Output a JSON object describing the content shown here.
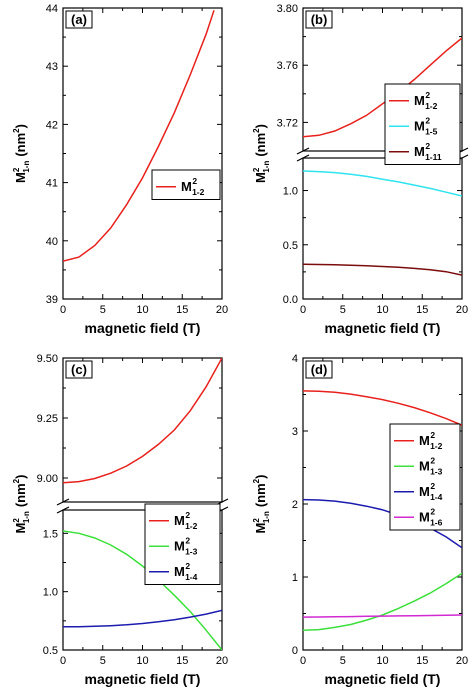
{
  "chart_data": [
    {
      "type": "line",
      "panel_label": "(a)",
      "xlabel": "magnetic field (T)",
      "ylabel": {
        "main": "M",
        "sup": "2",
        "sub": "1-n",
        "unit": "(nm",
        "unit_sup": "2",
        "unit_close": ")"
      },
      "xlim": [
        0,
        20
      ],
      "xticks": [
        "0",
        "5",
        "10",
        "15",
        "20"
      ],
      "ylim": [
        39,
        44
      ],
      "yticks": [
        "39",
        "40",
        "41",
        "42",
        "43",
        "44"
      ],
      "series": [
        {
          "name": "M",
          "sup": "2",
          "sub": "1-2",
          "color": "#e8211c",
          "x": [
            0,
            2,
            4,
            6,
            8,
            10,
            12,
            14,
            16,
            18,
            19
          ],
          "y": [
            39.65,
            39.72,
            39.92,
            40.22,
            40.62,
            41.08,
            41.62,
            42.2,
            42.85,
            43.55,
            43.96
          ]
        }
      ]
    },
    {
      "type": "line",
      "panel_label": "(b)",
      "xlabel": "magnetic field (T)",
      "ylabel": {
        "main": "M",
        "sup": "2",
        "sub": "1-n",
        "unit": "(nm",
        "unit_sup": "2",
        "unit_close": ")"
      },
      "xlim": [
        0,
        20
      ],
      "xticks": [
        "0",
        "5",
        "10",
        "15",
        "20"
      ],
      "broken_axis": true,
      "upper": {
        "ylim": [
          3.7,
          3.8
        ],
        "yticks": [
          "3.72",
          "3.76",
          "3.80"
        ]
      },
      "lower": {
        "ylim": [
          0.0,
          1.3
        ],
        "yticks": [
          "0.0",
          "0.5",
          "1.0"
        ]
      },
      "series": [
        {
          "name": "M",
          "sup": "2",
          "sub": "1-2",
          "color": "#e8211c",
          "segment": "upper",
          "x": [
            0,
            2,
            4,
            6,
            8,
            10,
            12,
            14,
            16,
            18,
            20
          ],
          "y": [
            3.71,
            3.711,
            3.714,
            3.719,
            3.725,
            3.733,
            3.741,
            3.75,
            3.76,
            3.77,
            3.779
          ]
        },
        {
          "name": "M",
          "sup": "2",
          "sub": "1-5",
          "color": "#2fe4ee",
          "segment": "lower",
          "x": [
            0,
            2,
            4,
            6,
            8,
            10,
            12,
            14,
            16,
            18,
            20
          ],
          "y": [
            1.18,
            1.175,
            1.165,
            1.15,
            1.13,
            1.105,
            1.08,
            1.05,
            1.02,
            0.985,
            0.95
          ]
        },
        {
          "name": "M",
          "sup": "2",
          "sub": "1-11",
          "color": "#7a0c0c",
          "segment": "lower",
          "x": [
            0,
            2,
            4,
            6,
            8,
            10,
            12,
            14,
            16,
            18,
            20
          ],
          "y": [
            0.32,
            0.318,
            0.315,
            0.311,
            0.306,
            0.3,
            0.292,
            0.282,
            0.27,
            0.252,
            0.22
          ]
        }
      ]
    },
    {
      "type": "line",
      "panel_label": "(c)",
      "xlabel": "magnetic field (T)",
      "ylabel": {
        "main": "M",
        "sup": "2",
        "sub": "1-n",
        "unit": "(nm",
        "unit_sup": "2",
        "unit_close": ")"
      },
      "xlim": [
        0,
        20
      ],
      "xticks": [
        "0",
        "5",
        "10",
        "15",
        "20"
      ],
      "broken_axis": true,
      "upper": {
        "ylim": [
          8.9,
          9.5
        ],
        "yticks": [
          "9.00",
          "9.25",
          "9.50"
        ]
      },
      "lower": {
        "ylim": [
          0.5,
          1.7
        ],
        "yticks": [
          "0.5",
          "1.0",
          "1.5"
        ]
      },
      "series": [
        {
          "name": "M",
          "sup": "2",
          "sub": "1-2",
          "color": "#e8211c",
          "segment": "upper",
          "x": [
            0,
            2,
            4,
            6,
            8,
            10,
            12,
            14,
            16,
            18,
            20
          ],
          "y": [
            8.98,
            8.985,
            8.998,
            9.02,
            9.05,
            9.09,
            9.14,
            9.2,
            9.28,
            9.38,
            9.5
          ]
        },
        {
          "name": "M",
          "sup": "2",
          "sub": "1-3",
          "color": "#3be03b",
          "segment": "lower",
          "x": [
            0,
            2,
            4,
            6,
            8,
            10,
            12,
            14,
            16,
            18,
            20
          ],
          "y": [
            1.52,
            1.5,
            1.46,
            1.4,
            1.32,
            1.22,
            1.1,
            0.97,
            0.83,
            0.67,
            0.5
          ]
        },
        {
          "name": "M",
          "sup": "2",
          "sub": "1-4",
          "color": "#1b1bb0",
          "segment": "lower",
          "x": [
            0,
            2,
            4,
            6,
            8,
            10,
            12,
            14,
            16,
            18,
            20
          ],
          "y": [
            0.7,
            0.7,
            0.703,
            0.708,
            0.716,
            0.727,
            0.742,
            0.76,
            0.782,
            0.808,
            0.84
          ]
        }
      ]
    },
    {
      "type": "line",
      "panel_label": "(d)",
      "xlabel": "magnetic field (T)",
      "ylabel": {
        "main": "M",
        "sup": "2",
        "sub": "1-n",
        "unit": "(nm",
        "unit_sup": "2",
        "unit_close": ")"
      },
      "xlim": [
        0,
        20
      ],
      "xticks": [
        "0",
        "5",
        "10",
        "15",
        "20"
      ],
      "ylim": [
        0,
        4
      ],
      "yticks": [
        "0",
        "1",
        "2",
        "3",
        "4"
      ],
      "series": [
        {
          "name": "M",
          "sup": "2",
          "sub": "1-2",
          "color": "#e8211c",
          "x": [
            0,
            2,
            4,
            6,
            8,
            10,
            12,
            14,
            16,
            18,
            20
          ],
          "y": [
            3.55,
            3.545,
            3.53,
            3.505,
            3.47,
            3.43,
            3.38,
            3.32,
            3.25,
            3.17,
            3.08
          ]
        },
        {
          "name": "M",
          "sup": "2",
          "sub": "1-3",
          "color": "#3be03b",
          "x": [
            0,
            2,
            4,
            6,
            8,
            10,
            12,
            14,
            16,
            18,
            20
          ],
          "y": [
            0.27,
            0.28,
            0.31,
            0.35,
            0.41,
            0.48,
            0.57,
            0.67,
            0.78,
            0.91,
            1.05
          ]
        },
        {
          "name": "M",
          "sup": "2",
          "sub": "1-4",
          "color": "#1b1bb0",
          "x": [
            0,
            2,
            4,
            6,
            8,
            10,
            12,
            14,
            16,
            18,
            20
          ],
          "y": [
            2.06,
            2.055,
            2.04,
            2.01,
            1.97,
            1.92,
            1.85,
            1.77,
            1.67,
            1.55,
            1.4
          ]
        },
        {
          "name": "M",
          "sup": "2",
          "sub": "1-6",
          "color": "#d12ad1",
          "x": [
            0,
            2,
            4,
            6,
            8,
            10,
            12,
            14,
            16,
            18,
            20
          ],
          "y": [
            0.45,
            0.452,
            0.455,
            0.458,
            0.461,
            0.464,
            0.467,
            0.47,
            0.473,
            0.476,
            0.48
          ]
        }
      ]
    }
  ]
}
